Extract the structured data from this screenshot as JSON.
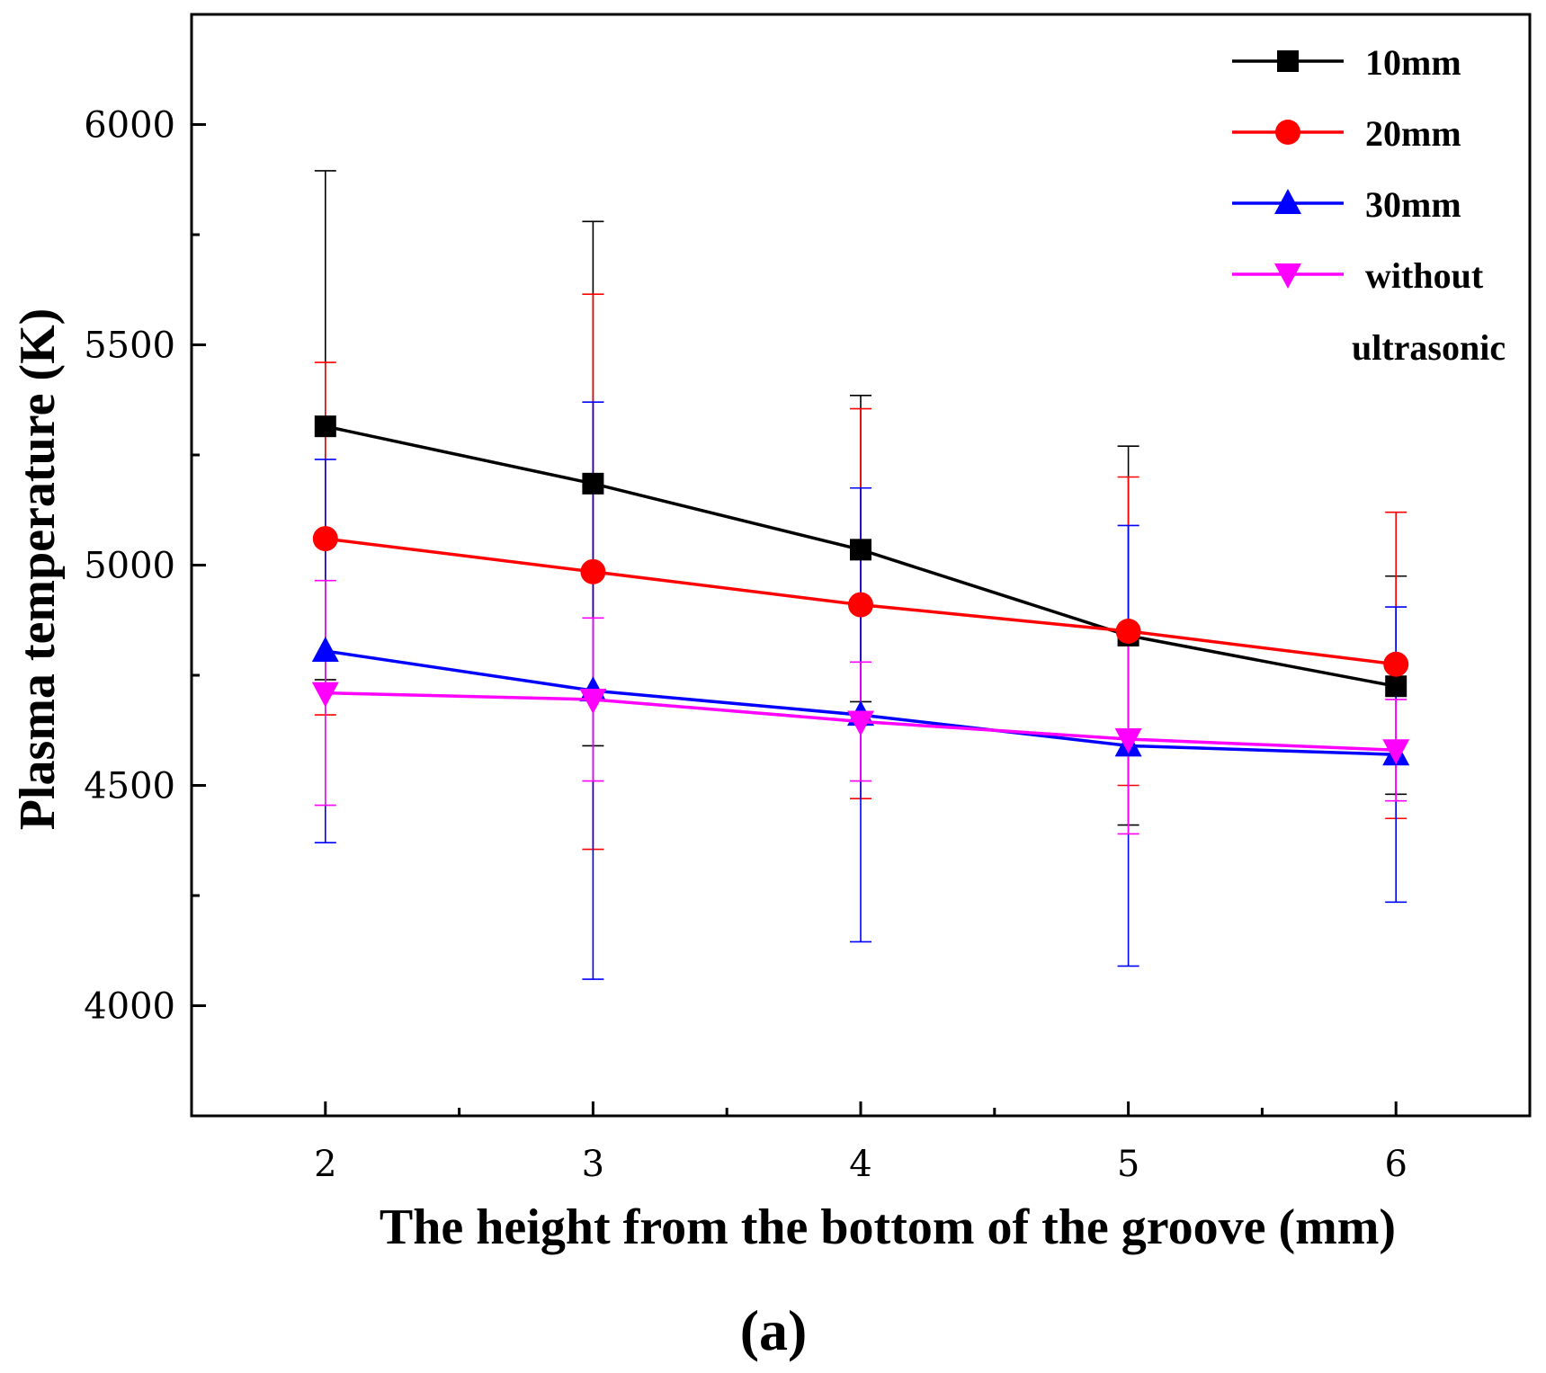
{
  "chart_data": {
    "type": "line",
    "title": "",
    "panel_label": "(a)",
    "xlabel": "The height from the bottom of the groove (mm)",
    "ylabel": "Plasma temperature (K)",
    "x": [
      2,
      3,
      4,
      5,
      6
    ],
    "x_ticks": [
      "2",
      "3",
      "4",
      "5",
      "6"
    ],
    "xlim": [
      1.5,
      6.5
    ],
    "ylim": [
      3750,
      6250
    ],
    "y_ticks": [
      "4000",
      "4500",
      "5000",
      "5500",
      "6000"
    ],
    "grid": false,
    "legend_position": "top-right",
    "series": [
      {
        "name": "10mm",
        "color": "#000000",
        "marker": "square",
        "values": [
          5315,
          5185,
          5035,
          4840,
          4725
        ],
        "err_low": [
          4740,
          4590,
          4690,
          4410,
          4480
        ],
        "err_high": [
          5895,
          5780,
          5385,
          5270,
          4975
        ]
      },
      {
        "name": "20mm",
        "color": "#ff0000",
        "marker": "circle",
        "values": [
          5060,
          4985,
          4910,
          4850,
          4775
        ],
        "err_low": [
          4660,
          4355,
          4470,
          4500,
          4425
        ],
        "err_high": [
          5460,
          5615,
          5355,
          5200,
          5120
        ]
      },
      {
        "name": "30mm",
        "color": "#0000ff",
        "marker": "triangle-up",
        "values": [
          4805,
          4715,
          4660,
          4590,
          4570
        ],
        "err_low": [
          4370,
          4060,
          4145,
          4090,
          4235
        ],
        "err_high": [
          5240,
          5370,
          5175,
          5090,
          4905
        ]
      },
      {
        "name": "without ultrasonic",
        "legend_lines": [
          "without",
          "ultrasonic"
        ],
        "color": "#ff00ff",
        "marker": "triangle-down",
        "values": [
          4710,
          4695,
          4645,
          4605,
          4580
        ],
        "err_low": [
          4455,
          4510,
          4510,
          4390,
          4465
        ],
        "err_high": [
          4965,
          4880,
          4780,
          4820,
          4695
        ]
      }
    ]
  }
}
